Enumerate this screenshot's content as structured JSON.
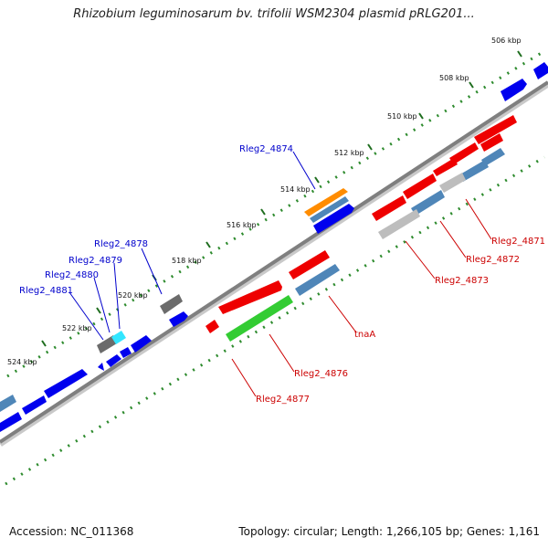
{
  "title": "Rhizobium leguminosarum bv. trifolii WSM2304 plasmid pRLG201...",
  "footer": {
    "accession": "Accession: NC_011368",
    "summary": "Topology: circular; Length: 1,266,105 bp; Genes: 1,161"
  },
  "colors": {
    "backbone": "#7f7f7f",
    "dots_forward": "#2e8b2e",
    "forward_label": "#0000cc",
    "reverse_label": "#cc0000",
    "gene_blue": "#0000ee",
    "gene_steel": "#4f86b8",
    "gene_red": "#ee0000",
    "gene_green": "#33cc33",
    "gene_orange": "#ff8c00",
    "gene_gray": "#6b6b6b",
    "gene_light_gray": "#bdbdbd",
    "gene_cyan": "#33e6ff"
  },
  "ticks": [
    "506 kbp",
    "508 kbp",
    "510 kbp",
    "512 kbp",
    "514 kbp",
    "516 kbp",
    "518 kbp",
    "520 kbp",
    "522 kbp",
    "524 kbp"
  ],
  "forward_labels": [
    "Rleg2_4874",
    "Rleg2_4878",
    "Rleg2_4879",
    "Rleg2_4880",
    "Rleg2_4881"
  ],
  "reverse_labels": [
    "Rleg2_4871",
    "Rleg2_4872",
    "Rleg2_4873",
    "tnaA",
    "Rleg2_4876",
    "Rleg2_4877"
  ]
}
